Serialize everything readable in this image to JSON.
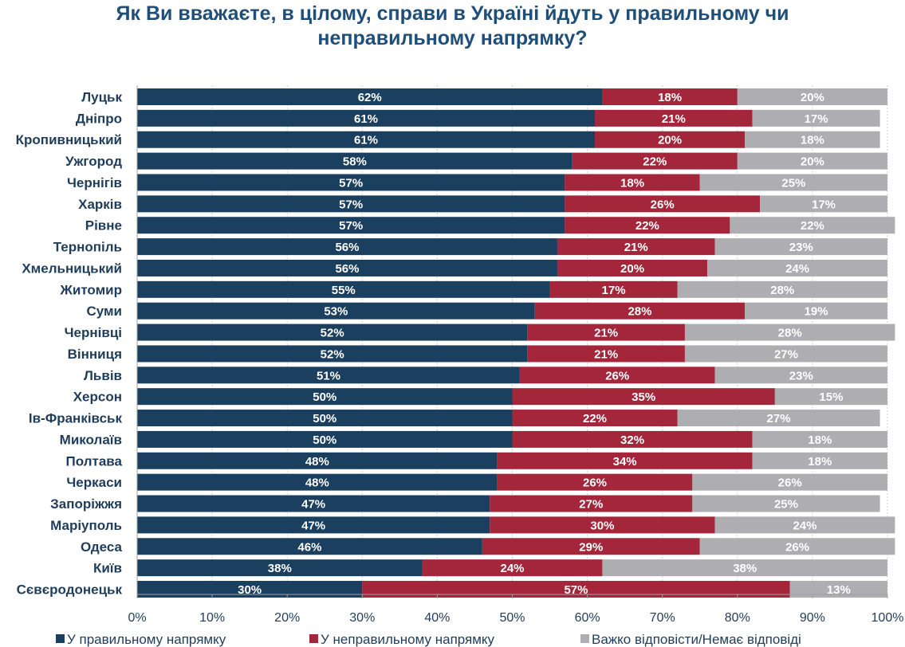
{
  "title_line1": "Як Ви вважаєте, в цілому, справи в Україні йдуть у правильному чи",
  "title_line2": "неправильному напрямку?",
  "chart_data": {
    "type": "bar",
    "orientation": "horizontal",
    "stacked": true,
    "xlim": [
      0,
      100
    ],
    "ticks": [
      "0%",
      "10%",
      "20%",
      "30%",
      "40%",
      "50%",
      "60%",
      "70%",
      "80%",
      "90%",
      "100%"
    ],
    "legend_position": "bottom",
    "categories": [
      "Луцьк",
      "Дніпро",
      "Кропивницький",
      "Ужгород",
      "Чернігів",
      "Харків",
      "Рівне",
      "Тернопіль",
      "Хмельницький",
      "Житомир",
      "Суми",
      "Чернівці",
      "Вінниця",
      "Львів",
      "Херсон",
      "Ів-Франківськ",
      "Миколаїв",
      "Полтава",
      "Черкаси",
      "Запоріжжя",
      "Маріуполь",
      "Одеса",
      "Київ",
      "Сєвєродонецьк"
    ],
    "series": [
      {
        "name": "У правильному напрямку",
        "color": "#1b3f5f",
        "values": [
          62,
          61,
          61,
          58,
          57,
          57,
          57,
          56,
          56,
          55,
          53,
          52,
          52,
          51,
          50,
          50,
          50,
          48,
          48,
          47,
          47,
          46,
          38,
          30
        ]
      },
      {
        "name": "У неправильному напрямку",
        "color": "#a3263b",
        "values": [
          18,
          21,
          20,
          22,
          18,
          26,
          22,
          21,
          20,
          17,
          28,
          21,
          21,
          26,
          35,
          22,
          32,
          34,
          26,
          27,
          30,
          29,
          24,
          57
        ]
      },
      {
        "name": "Важко відповісти/Немає відповіді",
        "color": "#aeadb2",
        "values": [
          20,
          17,
          18,
          20,
          25,
          17,
          22,
          23,
          24,
          28,
          19,
          28,
          27,
          23,
          15,
          27,
          18,
          18,
          26,
          25,
          24,
          26,
          38,
          13
        ]
      }
    ]
  }
}
